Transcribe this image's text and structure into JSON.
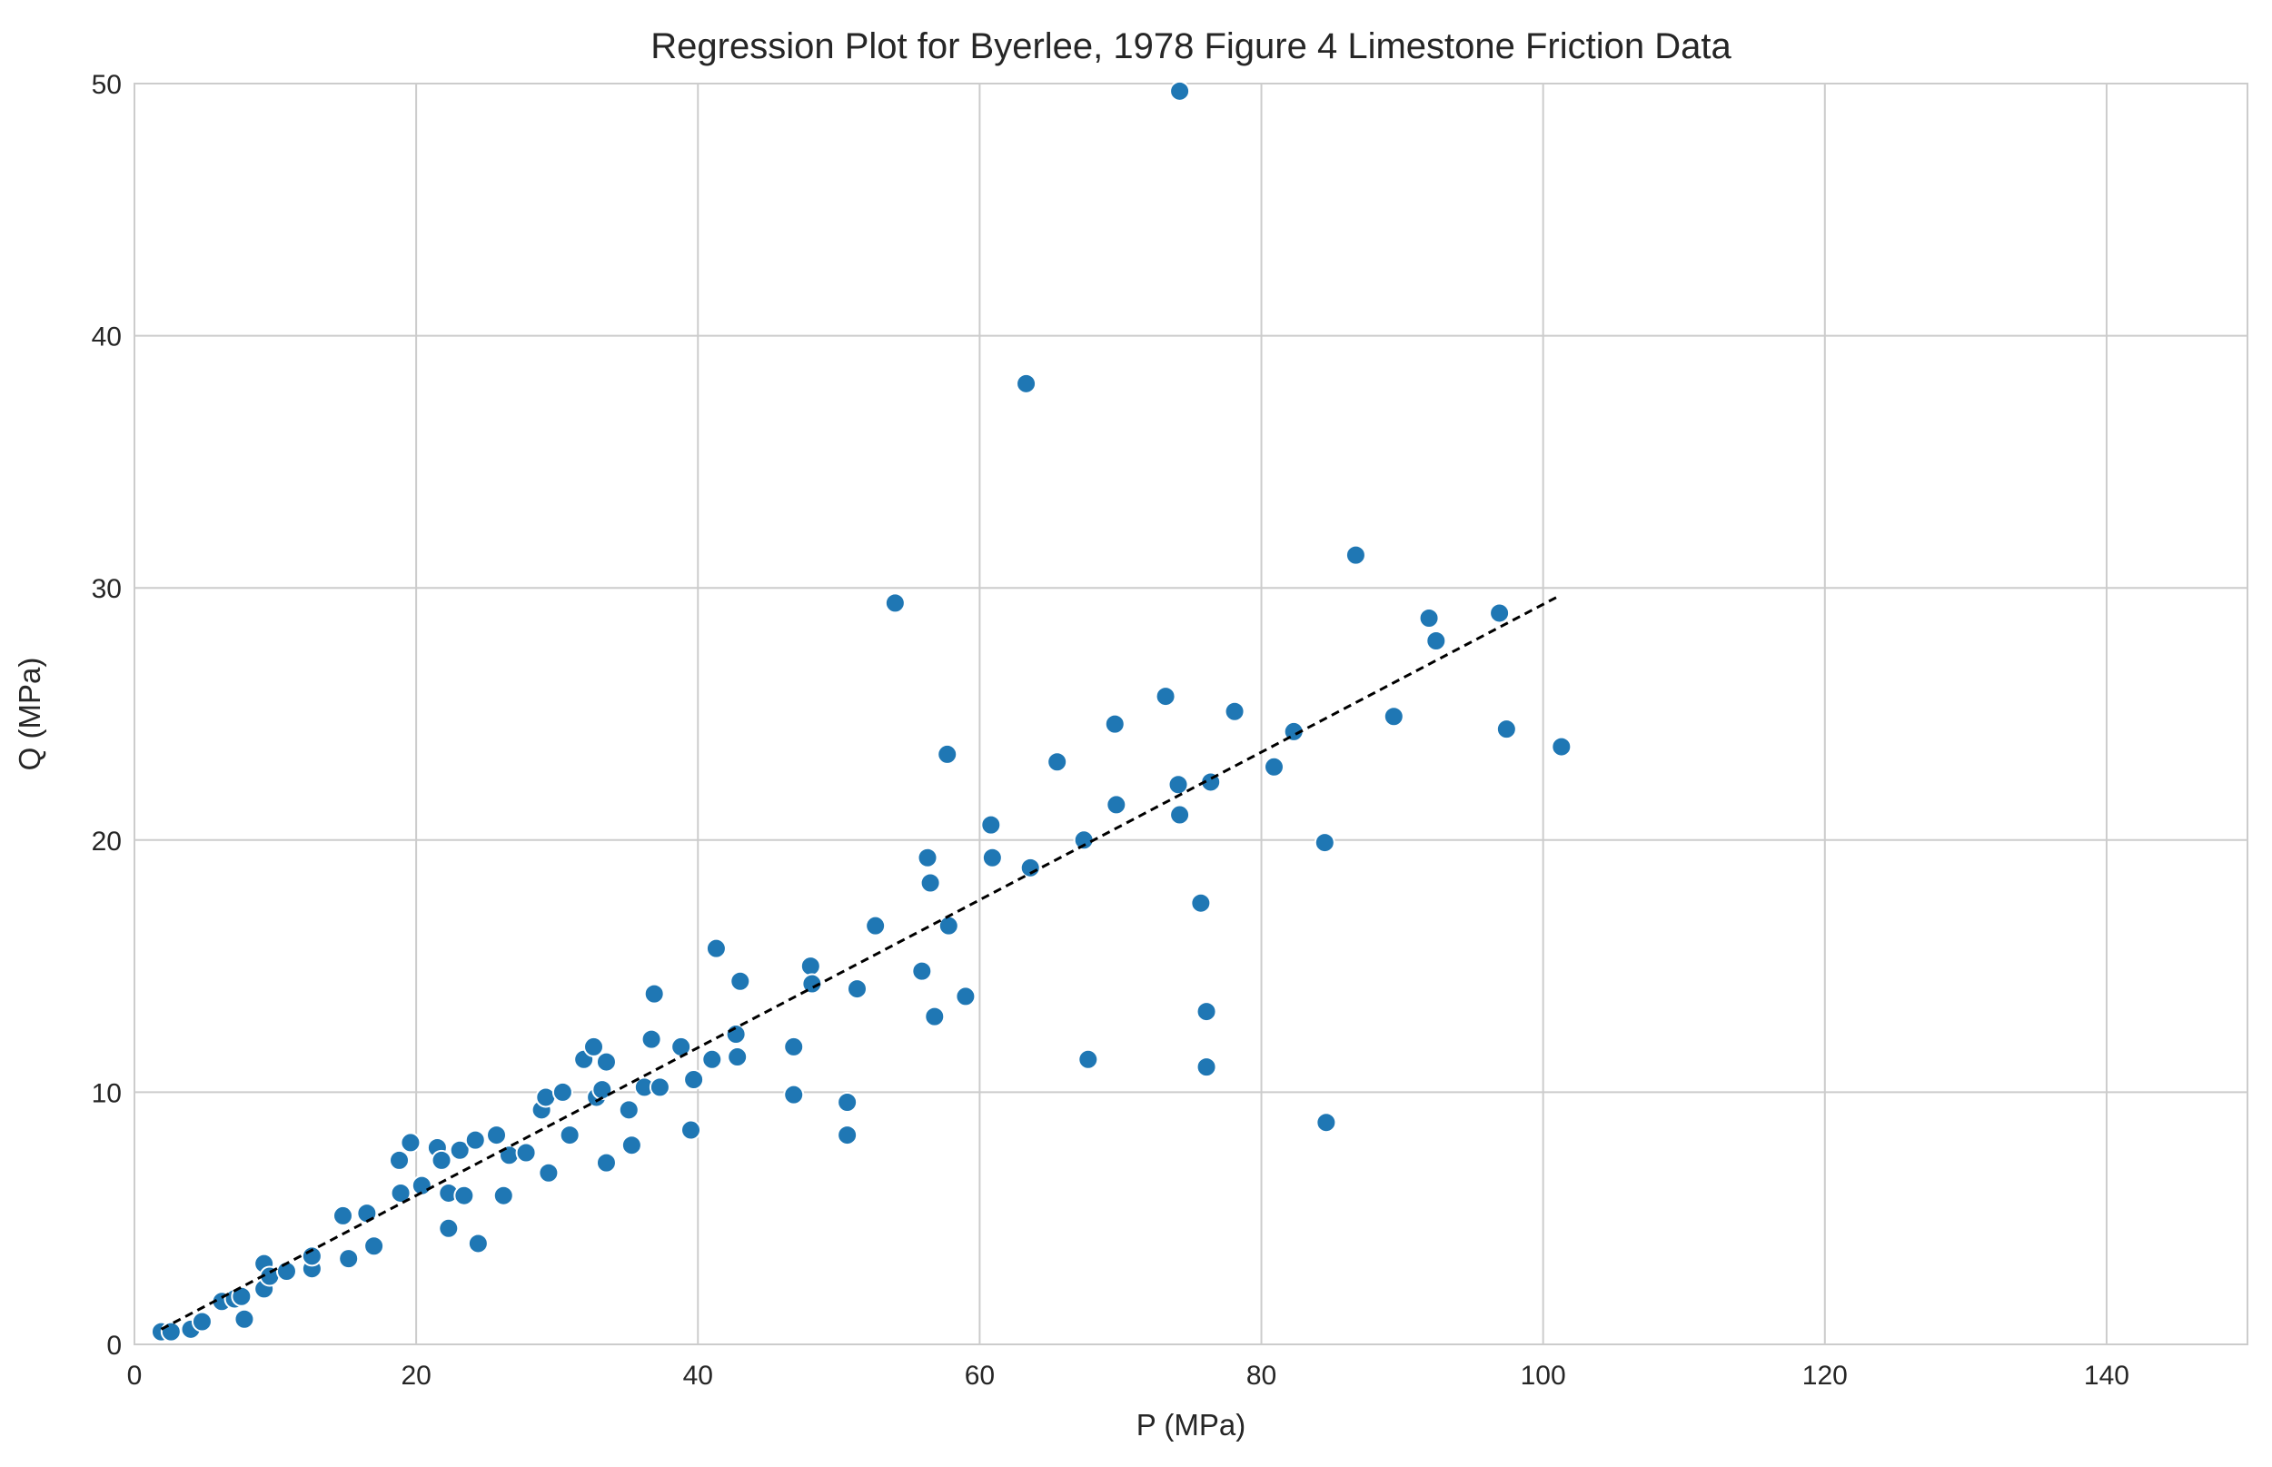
{
  "chart_data": {
    "type": "scatter",
    "title": "Regression Plot for Byerlee, 1978 Figure 4 Limestone Friction Data",
    "xlabel": "P (MPa)",
    "ylabel": "Q (MPa)",
    "xlim": [
      0,
      150
    ],
    "ylim": [
      0,
      50
    ],
    "xticks": [
      0,
      20,
      40,
      60,
      80,
      100,
      120,
      140
    ],
    "yticks": [
      0,
      10,
      20,
      30,
      40,
      50
    ],
    "grid": true,
    "colors": {
      "points": "#1f77b4",
      "point_edge": "#ffffff",
      "regression": "#000000",
      "grid": "#cccccc",
      "frame": "#cccccc"
    },
    "regression_line": {
      "style": "dashed",
      "x": [
        1.9,
        101.2
      ],
      "y": [
        0.6,
        29.7
      ]
    },
    "series": [
      {
        "points": [
          [
            1.9,
            0.5
          ],
          [
            2.6,
            0.5
          ],
          [
            4.0,
            0.6
          ],
          [
            4.8,
            0.9
          ],
          [
            6.2,
            1.7
          ],
          [
            7.1,
            1.8
          ],
          [
            7.6,
            1.9
          ],
          [
            7.8,
            1.0
          ],
          [
            9.2,
            2.2
          ],
          [
            9.2,
            3.2
          ],
          [
            9.6,
            2.7
          ],
          [
            10.8,
            2.9
          ],
          [
            12.6,
            3.0
          ],
          [
            12.6,
            3.5
          ],
          [
            14.8,
            5.1
          ],
          [
            15.2,
            3.4
          ],
          [
            16.5,
            5.2
          ],
          [
            17.0,
            3.9
          ],
          [
            18.8,
            7.3
          ],
          [
            18.9,
            6.0
          ],
          [
            19.6,
            8.0
          ],
          [
            20.4,
            6.3
          ],
          [
            21.5,
            7.8
          ],
          [
            21.8,
            7.3
          ],
          [
            22.3,
            6.0
          ],
          [
            22.3,
            4.6
          ],
          [
            23.1,
            7.7
          ],
          [
            23.4,
            5.9
          ],
          [
            24.2,
            8.1
          ],
          [
            24.4,
            4.0
          ],
          [
            25.7,
            8.3
          ],
          [
            26.2,
            5.9
          ],
          [
            26.6,
            7.5
          ],
          [
            27.8,
            7.6
          ],
          [
            28.9,
            9.3
          ],
          [
            29.2,
            9.8
          ],
          [
            29.4,
            6.8
          ],
          [
            30.4,
            10.0
          ],
          [
            30.9,
            8.3
          ],
          [
            31.9,
            11.3
          ],
          [
            32.6,
            11.8
          ],
          [
            32.8,
            9.8
          ],
          [
            33.2,
            10.1
          ],
          [
            33.5,
            11.2
          ],
          [
            33.5,
            7.2
          ],
          [
            35.1,
            9.3
          ],
          [
            35.3,
            7.9
          ],
          [
            36.2,
            10.2
          ],
          [
            36.7,
            12.1
          ],
          [
            36.9,
            13.9
          ],
          [
            37.3,
            10.2
          ],
          [
            38.8,
            11.8
          ],
          [
            39.5,
            8.5
          ],
          [
            39.7,
            10.5
          ],
          [
            41.0,
            11.3
          ],
          [
            41.3,
            15.7
          ],
          [
            42.7,
            12.3
          ],
          [
            42.8,
            11.4
          ],
          [
            43.0,
            14.4
          ],
          [
            46.8,
            11.8
          ],
          [
            46.8,
            9.9
          ],
          [
            48.0,
            15.0
          ],
          [
            48.1,
            14.3
          ],
          [
            50.6,
            9.6
          ],
          [
            50.6,
            8.3
          ],
          [
            51.3,
            14.1
          ],
          [
            52.6,
            16.6
          ],
          [
            54.0,
            29.4
          ],
          [
            55.9,
            14.8
          ],
          [
            56.3,
            19.3
          ],
          [
            56.5,
            18.3
          ],
          [
            56.8,
            13.0
          ],
          [
            57.7,
            23.4
          ],
          [
            57.8,
            16.6
          ],
          [
            59.0,
            13.8
          ],
          [
            60.8,
            20.6
          ],
          [
            60.9,
            19.3
          ],
          [
            63.3,
            38.1
          ],
          [
            63.6,
            18.9
          ],
          [
            65.5,
            23.1
          ],
          [
            67.4,
            20.0
          ],
          [
            67.7,
            11.3
          ],
          [
            69.6,
            24.6
          ],
          [
            69.7,
            21.4
          ],
          [
            73.2,
            25.7
          ],
          [
            74.1,
            22.2
          ],
          [
            74.2,
            21.0
          ],
          [
            74.2,
            49.7
          ],
          [
            75.7,
            17.5
          ],
          [
            76.1,
            11.0
          ],
          [
            76.1,
            13.2
          ],
          [
            76.4,
            22.3
          ],
          [
            78.1,
            25.1
          ],
          [
            80.9,
            22.9
          ],
          [
            82.3,
            24.3
          ],
          [
            84.5,
            19.9
          ],
          [
            84.6,
            8.8
          ],
          [
            86.7,
            31.3
          ],
          [
            89.4,
            24.9
          ],
          [
            91.9,
            28.8
          ],
          [
            92.4,
            27.9
          ],
          [
            96.9,
            29.0
          ],
          [
            97.4,
            24.4
          ],
          [
            101.3,
            23.7
          ]
        ]
      }
    ]
  }
}
